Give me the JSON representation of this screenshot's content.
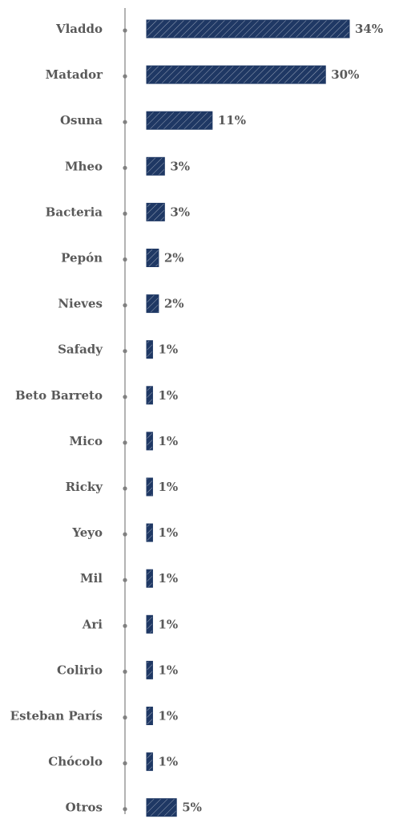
{
  "chart_data": {
    "type": "bar",
    "orientation": "horizontal",
    "categories": [
      "Vladdo",
      "Matador",
      "Osuna",
      "Mheo",
      "Bacteria",
      "Pepón",
      "Nieves",
      "Safady",
      "Beto Barreto",
      "Mico",
      "Ricky",
      "Yeyo",
      "Mil",
      "Ari",
      "Colirio",
      "Esteban París",
      "Chócolo",
      "Otros"
    ],
    "values": [
      34,
      30,
      11,
      3,
      3,
      2,
      2,
      1,
      1,
      1,
      1,
      1,
      1,
      1,
      1,
      1,
      1,
      5
    ],
    "value_labels": [
      "34%",
      "30%",
      "11%",
      "3%",
      "3%",
      "2%",
      "2%",
      "1%",
      "1%",
      "1%",
      "1%",
      "1%",
      "1%",
      "1%",
      "1%",
      "1%",
      "1%",
      "5%"
    ],
    "unit": "%",
    "xlim": [
      0,
      34
    ],
    "grid": false,
    "legend": "none",
    "colors": {
      "bar": "#1f3864",
      "hatch": "#ffffff",
      "axis": "#808080",
      "text": "#595959"
    }
  }
}
